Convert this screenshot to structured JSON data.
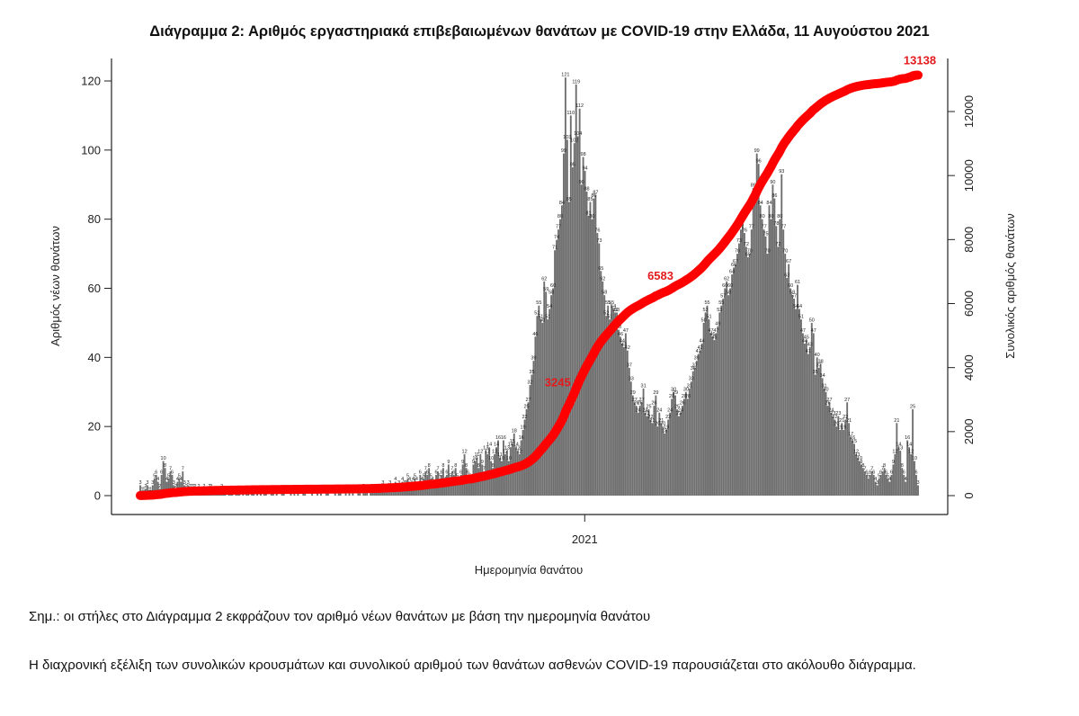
{
  "chart_data": {
    "type": "bar",
    "title": "Διάγραμμα 2: Αριθμός εργαστηριακά επιβεβαιωμένων θανάτων με COVID-19 στην Ελλάδα, 11 Αυγούστου 2021",
    "xlabel": "Ημερομηνία θανάτου",
    "ylabel": "Αριθμός νέων θανάτων",
    "y2label": "Συνολικός αριθμός θανάτων",
    "x_tick_labels": [
      "2021"
    ],
    "y_ticks": [
      0,
      20,
      40,
      60,
      80,
      100,
      120
    ],
    "y2_ticks": [
      0,
      2000,
      4000,
      6000,
      8000,
      10000,
      12000
    ],
    "ylim": [
      0,
      125
    ],
    "y2lim": [
      0,
      13000
    ],
    "grid": false,
    "legend": "none",
    "date_range": [
      "2020-03-11",
      "2021-08-11"
    ],
    "bar_color": "#6e6e6e",
    "line_color": "#ff0000",
    "series": [
      {
        "name": "Αριθμός νέων θανάτων",
        "type": "bar",
        "values": [
          3,
          1,
          1,
          2,
          3,
          1,
          1,
          3,
          5,
          6,
          4,
          2,
          6,
          10,
          8,
          4,
          5,
          7,
          6,
          3,
          2,
          4,
          5,
          4,
          7,
          3,
          2,
          3,
          2,
          2,
          2,
          2,
          1,
          2,
          1,
          1,
          2,
          1,
          1,
          2,
          2,
          1,
          1,
          1,
          1,
          1,
          2,
          1,
          1,
          0,
          1,
          1,
          1,
          0,
          1,
          1,
          1,
          0,
          1,
          0,
          1,
          1,
          0,
          1,
          1,
          0,
          1,
          0,
          1,
          0,
          1,
          1,
          0,
          0,
          1,
          1,
          0,
          1,
          0,
          0,
          1,
          1,
          0,
          0,
          0,
          1,
          0,
          1,
          0,
          1,
          0,
          0,
          1,
          1,
          0,
          0,
          0,
          1,
          0,
          0,
          1,
          0,
          1,
          0,
          0,
          1,
          1,
          0,
          0,
          0,
          1,
          0,
          1,
          1,
          0,
          0,
          1,
          0,
          1,
          0,
          1,
          0,
          0,
          1,
          1,
          0,
          2,
          1,
          1,
          0,
          1,
          2,
          1,
          2,
          1,
          1,
          2,
          3,
          2,
          1,
          2,
          3,
          1,
          2,
          4,
          2,
          3,
          2,
          4,
          3,
          3,
          5,
          4,
          3,
          4,
          5,
          4,
          2,
          6,
          4,
          5,
          7,
          6,
          8,
          5,
          4,
          3,
          6,
          7,
          5,
          6,
          8,
          4,
          6,
          9,
          5,
          7,
          6,
          8,
          5,
          4,
          6,
          9,
          12,
          8,
          6,
          5,
          4,
          9,
          10,
          11,
          8,
          12,
          9,
          7,
          13,
          12,
          14,
          10,
          8,
          12,
          14,
          16,
          11,
          10,
          16,
          12,
          13,
          10,
          14,
          15,
          18,
          14,
          13,
          12,
          16,
          19,
          22,
          25,
          27,
          32,
          35,
          39,
          46,
          52,
          55,
          51,
          50,
          62,
          59,
          51,
          54,
          58,
          60,
          71,
          74,
          77,
          80,
          84,
          99,
          121,
          103,
          85,
          110,
          95,
          102,
          119,
          104,
          112,
          90,
          98,
          94,
          88,
          81,
          85,
          80,
          86,
          87,
          76,
          73,
          65,
          62,
          58,
          52,
          55,
          51,
          55,
          54,
          53,
          53,
          48,
          46,
          44,
          43,
          47,
          42,
          37,
          33,
          29,
          27,
          26,
          24,
          26,
          27,
          31,
          24,
          23,
          25,
          22,
          21,
          26,
          29,
          20,
          24,
          21,
          20,
          18,
          19,
          22,
          24,
          28,
          30,
          29,
          25,
          23,
          24,
          26,
          28,
          30,
          28,
          31,
          33,
          36,
          37,
          39,
          41,
          42,
          44,
          50,
          53,
          55,
          51,
          47,
          46,
          45,
          47,
          49,
          53,
          55,
          57,
          60,
          62,
          58,
          60,
          64,
          66,
          67,
          70,
          73,
          77,
          79,
          76,
          72,
          69,
          70,
          77,
          89,
          86,
          99,
          96,
          84,
          80,
          77,
          75,
          70,
          84,
          80,
          90,
          86,
          78,
          72,
          80,
          93,
          77,
          70,
          63,
          67,
          60,
          58,
          57,
          54,
          61,
          54,
          51,
          47,
          44,
          45,
          41,
          43,
          50,
          47,
          35,
          40,
          37,
          38,
          34,
          31,
          30,
          26,
          27,
          24,
          23,
          22,
          20,
          23,
          19,
          21,
          19,
          22,
          27,
          21,
          17,
          16,
          15,
          12,
          11,
          10,
          9,
          8,
          7,
          6,
          5,
          6,
          7,
          6,
          4,
          3,
          5,
          6,
          7,
          8,
          6,
          5,
          4,
          6,
          9,
          12,
          21,
          14,
          13,
          8,
          6,
          4,
          16,
          14,
          12,
          25,
          10,
          6,
          3
        ]
      },
      {
        "name": "Συνολικός αριθμός θανάτων",
        "type": "line",
        "axis": "right",
        "annotations": [
          {
            "label": "3245",
            "value": 3245
          },
          {
            "label": "6583",
            "value": 6583
          },
          {
            "label": "13138",
            "value": 13138
          }
        ]
      }
    ]
  },
  "notes": {
    "note1": "Σημ.: οι στήλες στο Διάγραμμα 2 εκφράζουν τον αριθμό νέων θανάτων με βάση την ημερομηνία θανάτου",
    "note2": "Η διαχρονική εξέλιξη των συνολικών κρουσμάτων και συνολικού αριθμού των θανάτων ασθενών COVID-19 παρουσιάζεται στο ακόλουθο διάγραμμα."
  }
}
